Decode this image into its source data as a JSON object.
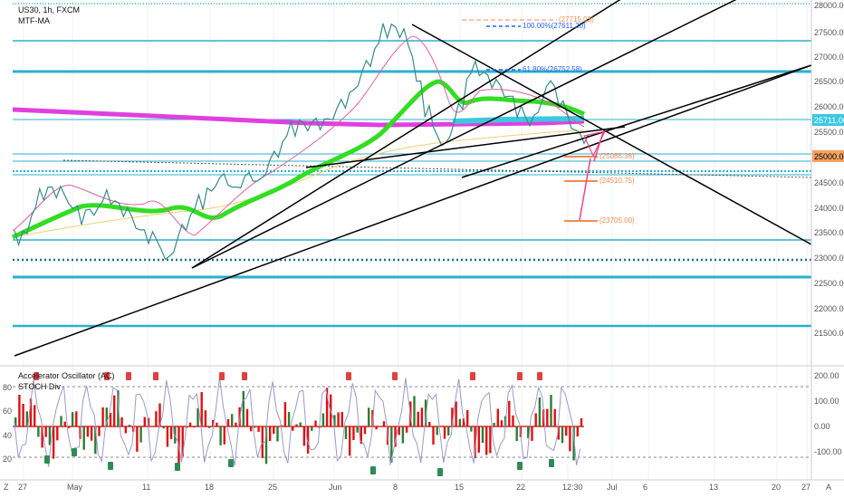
{
  "header": {
    "symbol": "US30, 1h, FXCM",
    "indicator": "MTF-MA"
  },
  "oscillator": {
    "title": "Accelerator Oscillator (AC)",
    "subtitle": "STOCH Div"
  },
  "price_axis": {
    "ticks": [
      "28000.00",
      "27500.00",
      "27000.00",
      "26500.00",
      "26000.00",
      "25500.00",
      "25000.00",
      "24500.00",
      "24000.00",
      "23500.00",
      "23000.00",
      "22500.00",
      "22000.00",
      "21500.00"
    ],
    "current_price": "25711.00",
    "level_badge": "25000.00"
  },
  "osc_axis": {
    "right_ticks": [
      "200.00",
      "100.00",
      "0.00",
      "-100.00"
    ],
    "left_ticks": [
      "80",
      "60",
      "40",
      "20"
    ]
  },
  "time_axis": {
    "labels": [
      "27",
      "May",
      "11",
      "18",
      "25",
      "Jun",
      "8",
      "15",
      "22",
      "12:30",
      "Jul",
      "6",
      "13",
      "20",
      "27"
    ]
  },
  "annotations": {
    "fib_100": "100.00%(27611.20)",
    "fib_618": "61.80%(26752.58)",
    "fib_top": "(27715.03)",
    "target_1": "(25086.36)",
    "target_2": "(24510.75)",
    "target_3": "(23705.00)"
  },
  "bottom_bar": {
    "z_label": "Z",
    "a_label": "A"
  },
  "colors": {
    "ma_magenta": "#e040e0",
    "ma_green": "#33dd22",
    "ma_cyan": "#3cc8e0",
    "horizontal_lines": "#2ab0d0",
    "trendlines": "#000000",
    "candles": "#3a8a8a",
    "fib_orange": "#f08c50",
    "fib_blue": "#2962ff",
    "osc_red": "#e01010",
    "stoch_lavender": "#9a9ac8"
  },
  "chart_data": {
    "type": "line",
    "series": [
      {
        "name": "US30",
        "values": [
          23400,
          23500,
          23900,
          24250,
          24400,
          24300,
          24150,
          24000,
          23800,
          23900,
          24050,
          24200,
          24100,
          23900,
          23700,
          23550,
          23400,
          23250,
          23000,
          23250,
          23600,
          23900,
          24100,
          24350,
          24500,
          24550,
          24400,
          24500,
          24600,
          24550,
          24800,
          25050,
          25350,
          25550,
          25700,
          25600,
          25650,
          25750,
          25850,
          26050,
          26300,
          26550,
          26850,
          27200,
          27500,
          27600,
          27450,
          27100,
          26500,
          25900,
          25500,
          25250,
          25550,
          26000,
          26600,
          26750,
          26650,
          26450,
          26300,
          26200,
          25900,
          25700,
          25850,
          26250,
          26450,
          26050,
          25700,
          25500,
          25350
        ]
      }
    ],
    "ylim": [
      21000,
      28000
    ]
  }
}
